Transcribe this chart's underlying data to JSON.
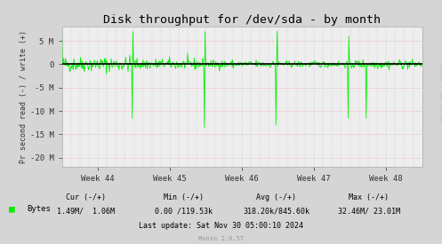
{
  "title": "Disk throughput for /dev/sda - by month",
  "ylabel": "Pr second read (-) / write (+)",
  "background_color": "#d5d5d5",
  "plot_bg_color": "#eeeeee",
  "grid_color_h": "#ffaaaa",
  "grid_color_v": "#aaaaff",
  "line_color": "#00ee00",
  "zero_line_color": "#000000",
  "ylim": [
    -22000000,
    8000000
  ],
  "ytick_vals": [
    5000000,
    0,
    -5000000,
    -10000000,
    -15000000,
    -20000000
  ],
  "ytick_labels": [
    "5 M",
    "0",
    "-5 M",
    "-10 M",
    "-15 M",
    "-20 M"
  ],
  "xtick_labels": [
    "Week 44",
    "Week 45",
    "Week 46",
    "Week 47",
    "Week 48"
  ],
  "footer_text": "Last update: Sat Nov 30 05:00:10 2024",
  "munin_text": "Munin 2.0.57",
  "legend_label": "Bytes",
  "side_text": "RRDTOOL / TOBI OETIKER",
  "seed": 42
}
